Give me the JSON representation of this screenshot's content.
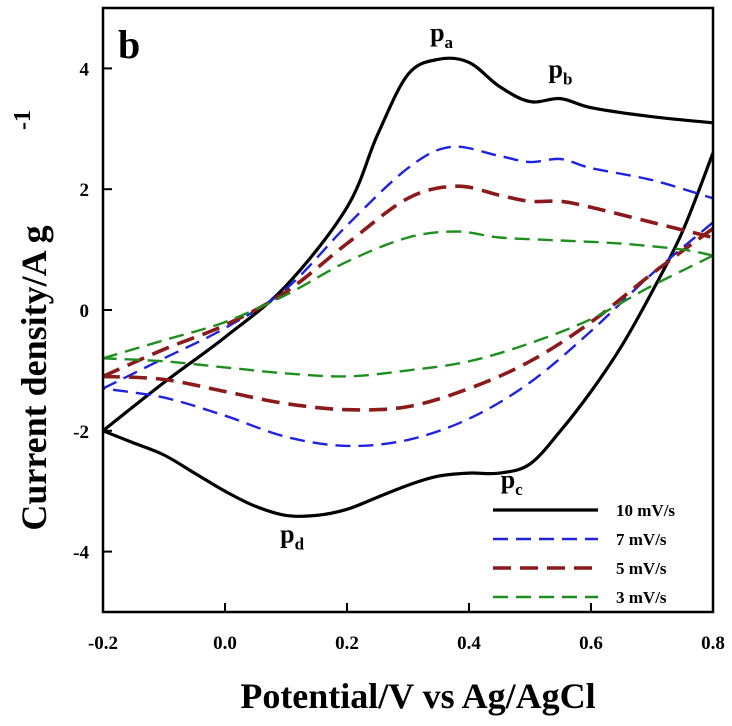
{
  "chart_data": {
    "type": "line",
    "panel_label": "b",
    "xlabel": "Potential/V vs Ag/AgCl",
    "ylabel": "Current density/A g",
    "ylabel_superscript": "-1",
    "xlim": [
      -0.2,
      0.8
    ],
    "ylim": [
      -5,
      5
    ],
    "x_ticks": [
      -0.2,
      0.0,
      0.2,
      0.4,
      0.6,
      0.8
    ],
    "x_tick_labels": [
      "-0.2",
      "0.0",
      "0.2",
      "0.4",
      "0.6",
      "0.8"
    ],
    "y_ticks": [
      4,
      2,
      0,
      -2,
      -4
    ],
    "y_tick_labels": [
      "4",
      "2",
      "0",
      "-2",
      "-4"
    ],
    "grid": false,
    "legend_position": "bottom-right",
    "annotations": [
      {
        "main": "p",
        "sub": "a",
        "x": 0.355,
        "y": 4.45
      },
      {
        "main": "p",
        "sub": "b",
        "x": 0.55,
        "y": 3.85
      },
      {
        "main": "p",
        "sub": "c",
        "x": 0.47,
        "y": -2.95
      },
      {
        "main": "p",
        "sub": "d",
        "x": 0.11,
        "y": -3.85
      }
    ],
    "series": [
      {
        "name": "10 mV/s",
        "color": "#000000",
        "dash": "solid",
        "anodic": {
          "x": [
            -0.2,
            -0.1,
            0.0,
            0.1,
            0.2,
            0.25,
            0.3,
            0.35,
            0.4,
            0.45,
            0.5,
            0.55,
            0.6,
            0.7,
            0.8
          ],
          "y": [
            -2.0,
            -1.2,
            -0.45,
            0.4,
            1.7,
            2.9,
            3.9,
            4.15,
            4.1,
            3.7,
            3.45,
            3.5,
            3.35,
            3.2,
            3.1
          ]
        },
        "cathodic": {
          "x": [
            0.8,
            0.75,
            0.7,
            0.65,
            0.6,
            0.55,
            0.5,
            0.45,
            0.4,
            0.35,
            0.3,
            0.25,
            0.2,
            0.15,
            0.1,
            0.05,
            0.0,
            -0.05,
            -0.1,
            -0.15,
            -0.2
          ],
          "y": [
            2.6,
            1.3,
            0.3,
            -0.6,
            -1.35,
            -2.0,
            -2.55,
            -2.7,
            -2.7,
            -2.75,
            -2.9,
            -3.1,
            -3.3,
            -3.4,
            -3.4,
            -3.25,
            -3.0,
            -2.7,
            -2.4,
            -2.2,
            -2.0
          ]
        }
      },
      {
        "name": "7 mV/s",
        "color": "#1f23e0",
        "dash": "dashed",
        "anodic": {
          "x": [
            -0.2,
            -0.1,
            0.0,
            0.1,
            0.2,
            0.3,
            0.37,
            0.45,
            0.5,
            0.55,
            0.6,
            0.7,
            0.8
          ],
          "y": [
            -1.3,
            -0.8,
            -0.3,
            0.35,
            1.4,
            2.35,
            2.7,
            2.55,
            2.45,
            2.5,
            2.35,
            2.15,
            1.85
          ]
        },
        "cathodic": {
          "x": [
            0.8,
            0.7,
            0.6,
            0.5,
            0.4,
            0.3,
            0.2,
            0.1,
            0.0,
            -0.1,
            -0.2
          ],
          "y": [
            1.45,
            0.6,
            -0.35,
            -1.2,
            -1.8,
            -2.15,
            -2.25,
            -2.1,
            -1.75,
            -1.45,
            -1.3
          ]
        }
      },
      {
        "name": "5 mV/s",
        "color": "#8b1a1a",
        "dash": "dashed",
        "anodic": {
          "x": [
            -0.2,
            -0.1,
            0.0,
            0.1,
            0.2,
            0.3,
            0.38,
            0.45,
            0.5,
            0.55,
            0.6,
            0.7,
            0.8
          ],
          "y": [
            -1.1,
            -0.65,
            -0.25,
            0.3,
            1.1,
            1.85,
            2.05,
            1.9,
            1.8,
            1.8,
            1.7,
            1.45,
            1.2
          ]
        },
        "cathodic": {
          "x": [
            0.8,
            0.7,
            0.6,
            0.5,
            0.4,
            0.3,
            0.2,
            0.1,
            0.0,
            -0.1,
            -0.2
          ],
          "y": [
            1.35,
            0.6,
            -0.2,
            -0.85,
            -1.3,
            -1.6,
            -1.65,
            -1.55,
            -1.35,
            -1.15,
            -1.1
          ]
        }
      },
      {
        "name": "3 mV/s",
        "color": "#1e8f1e",
        "dash": "dashed",
        "anodic": {
          "x": [
            -0.2,
            -0.1,
            0.0,
            0.1,
            0.2,
            0.3,
            0.38,
            0.45,
            0.55,
            0.65,
            0.75,
            0.8
          ],
          "y": [
            -0.8,
            -0.5,
            -0.2,
            0.25,
            0.8,
            1.2,
            1.3,
            1.2,
            1.15,
            1.1,
            1.0,
            0.9
          ]
        },
        "cathodic": {
          "x": [
            0.8,
            0.7,
            0.6,
            0.5,
            0.4,
            0.3,
            0.2,
            0.1,
            0.0,
            -0.1,
            -0.2
          ],
          "y": [
            0.9,
            0.4,
            -0.15,
            -0.55,
            -0.85,
            -1.0,
            -1.1,
            -1.05,
            -0.95,
            -0.85,
            -0.8
          ]
        }
      }
    ]
  }
}
